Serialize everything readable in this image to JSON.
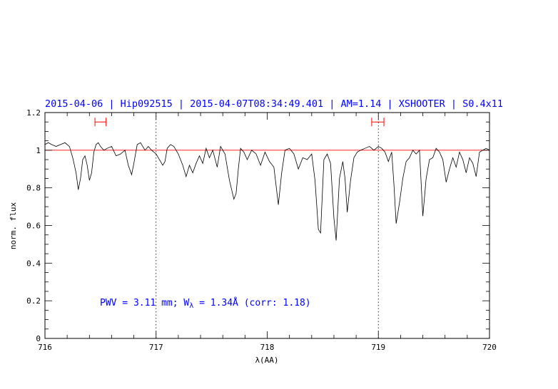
{
  "chart_data": {
    "type": "line",
    "title": "2015-04-06 | Hip092515 | 2015-04-07T08:34:49.401 | AM=1.14 | XSHOOTER | S0.4x11",
    "xlabel": "λ(AA)",
    "ylabel": "norm. flux",
    "xlim": [
      716,
      720
    ],
    "ylim": [
      0,
      1.2
    ],
    "x_ticks": [
      "716",
      "717",
      "718",
      "719",
      "720"
    ],
    "y_ticks": [
      "0",
      "0.2",
      "0.4",
      "0.6",
      "0.8",
      "1",
      "1.2"
    ],
    "annotation": {
      "prefix": "PWV = 3.11 mm; W",
      "subscript": "λ",
      "suffix": " = 1.34Å (corr: 1.18)"
    },
    "reference_line": {
      "y": 1.0,
      "color": "#ff0000"
    },
    "vertical_markers": [
      717.0,
      719.0
    ],
    "ranges": [
      {
        "x_start": 716.45,
        "x_end": 716.55,
        "y": 1.15
      },
      {
        "x_start": 718.94,
        "x_end": 719.05,
        "y": 1.15
      }
    ],
    "colors": {
      "title": "#0000ff",
      "annotation": "#0000ff",
      "range_marker": "#ff0000",
      "reference_line": "#ff0000",
      "spectrum": "#000000",
      "axes": "#000000"
    },
    "series": [
      {
        "x": [
          716.0,
          716.03,
          716.06,
          716.1,
          716.14,
          716.18,
          716.22,
          716.25,
          716.28,
          716.3,
          716.32,
          716.34,
          716.36,
          716.38,
          716.4,
          716.42,
          716.44,
          716.46,
          716.48,
          716.5,
          716.53,
          716.56,
          716.6,
          716.64,
          716.68,
          716.72,
          716.75,
          716.78,
          716.8,
          716.83,
          716.86,
          716.88,
          716.9,
          716.93,
          716.96,
          717.0,
          717.03,
          717.06,
          717.08,
          717.1,
          717.13,
          717.16,
          717.2,
          717.24,
          717.27,
          717.3,
          717.33,
          717.36,
          717.39,
          717.42,
          717.45,
          717.48,
          717.51,
          717.55,
          717.58,
          717.62,
          717.66,
          717.7,
          717.72,
          717.74,
          717.76,
          717.79,
          717.82,
          717.86,
          717.9,
          717.94,
          717.98,
          718.02,
          718.06,
          718.1,
          718.13,
          718.16,
          718.2,
          718.24,
          718.28,
          718.32,
          718.36,
          718.4,
          718.43,
          718.46,
          718.48,
          718.51,
          718.54,
          718.57,
          718.6,
          718.62,
          718.65,
          718.68,
          718.7,
          718.72,
          718.75,
          718.78,
          718.81,
          718.84,
          718.88,
          718.92,
          718.96,
          719.0,
          719.03,
          719.06,
          719.09,
          719.12,
          719.14,
          719.16,
          719.19,
          719.22,
          719.25,
          719.28,
          719.31,
          719.34,
          719.37,
          719.4,
          719.43,
          719.46,
          719.49,
          719.52,
          719.55,
          719.58,
          719.61,
          719.64,
          719.67,
          719.7,
          719.73,
          719.76,
          719.79,
          719.82,
          719.85,
          719.88,
          719.91,
          719.94,
          719.97,
          720.0
        ],
        "y": [
          1.03,
          1.04,
          1.03,
          1.02,
          1.03,
          1.04,
          1.02,
          0.96,
          0.88,
          0.79,
          0.85,
          0.95,
          0.97,
          0.92,
          0.84,
          0.88,
          0.99,
          1.03,
          1.04,
          1.02,
          1.0,
          1.01,
          1.02,
          0.97,
          0.98,
          1.0,
          0.92,
          0.87,
          0.93,
          1.03,
          1.04,
          1.02,
          1.0,
          1.02,
          1.0,
          0.98,
          0.95,
          0.92,
          0.94,
          1.01,
          1.03,
          1.02,
          0.98,
          0.92,
          0.86,
          0.92,
          0.88,
          0.93,
          0.97,
          0.93,
          1.01,
          0.96,
          1.0,
          0.91,
          1.02,
          0.98,
          0.84,
          0.74,
          0.77,
          0.9,
          1.01,
          0.99,
          0.95,
          1.0,
          0.98,
          0.92,
          0.99,
          0.94,
          0.91,
          0.71,
          0.88,
          1.0,
          1.01,
          0.98,
          0.9,
          0.96,
          0.95,
          0.98,
          0.84,
          0.58,
          0.56,
          0.95,
          0.98,
          0.93,
          0.64,
          0.52,
          0.85,
          0.94,
          0.85,
          0.67,
          0.84,
          0.96,
          0.99,
          1.0,
          1.01,
          1.02,
          1.0,
          1.02,
          1.01,
          0.99,
          0.94,
          0.99,
          0.82,
          0.61,
          0.72,
          0.85,
          0.94,
          0.96,
          1.0,
          0.98,
          1.0,
          0.65,
          0.85,
          0.95,
          0.96,
          1.01,
          0.99,
          0.95,
          0.83,
          0.9,
          0.96,
          0.91,
          0.99,
          0.95,
          0.88,
          0.96,
          0.93,
          0.86,
          0.99,
          1.0,
          1.01,
          1.0
        ]
      }
    ]
  }
}
